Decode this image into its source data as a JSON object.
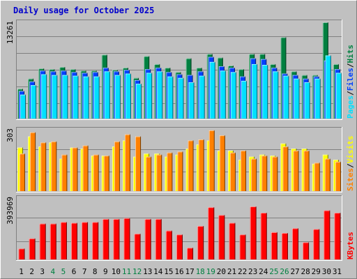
{
  "title": "Daily usage for October 2025",
  "colors": {
    "hits": "#008040",
    "files": "#0040ff",
    "pages": "#00e0ff",
    "visits": "#ffff00",
    "sites": "#ff8000",
    "kbytes": "#ff0000",
    "weekend_day_label": "#008040",
    "weekday_label": "#000000",
    "title": "#0000cc",
    "background": "#c0c0c0"
  },
  "chart_data": [
    {
      "type": "bar",
      "panel": "top",
      "ymax_label": "13261",
      "ylim": [
        0,
        13261
      ],
      "side_labels": [
        "Pages",
        "/",
        "Files",
        "/",
        "Hits"
      ],
      "categories": [
        "1",
        "2",
        "3",
        "4",
        "5",
        "6",
        "7",
        "8",
        "9",
        "10",
        "11",
        "12",
        "13",
        "14",
        "15",
        "16",
        "17",
        "18",
        "19",
        "20",
        "21",
        "22",
        "23",
        "24",
        "25",
        "26",
        "27",
        "28",
        "29",
        "30",
        "31"
      ],
      "weekend_days": [
        "4",
        "5",
        "11",
        "12",
        "18",
        "19",
        "25",
        "26"
      ],
      "series": [
        {
          "name": "Hits",
          "values": [
            4100,
            5500,
            6900,
            6800,
            7100,
            6800,
            6600,
            6600,
            8800,
            6700,
            7000,
            5600,
            8600,
            7500,
            7000,
            6400,
            8300,
            7000,
            8900,
            8400,
            7300,
            6800,
            8900,
            8900,
            7500,
            11200,
            6500,
            6000,
            6000,
            13261,
            7500
          ]
        },
        {
          "name": "Files",
          "values": [
            3800,
            5100,
            6600,
            6500,
            6600,
            6400,
            6300,
            6400,
            7000,
            6500,
            6700,
            5300,
            6800,
            7000,
            6400,
            6100,
            6000,
            6500,
            8500,
            7200,
            7000,
            5800,
            8300,
            8200,
            7000,
            6200,
            6000,
            5500,
            5800,
            8000,
            6800
          ]
        },
        {
          "name": "Pages",
          "values": [
            3300,
            4600,
            6100,
            6000,
            6000,
            5900,
            5800,
            5800,
            6500,
            6000,
            6200,
            4800,
            6300,
            6500,
            5800,
            5600,
            5000,
            5900,
            7800,
            6600,
            6400,
            5200,
            7500,
            7400,
            6500,
            5900,
            5500,
            5000,
            5500,
            8700,
            6300
          ]
        }
      ]
    },
    {
      "type": "bar",
      "panel": "middle",
      "ymax_label": "303",
      "ylim": [
        0,
        303
      ],
      "side_labels": [
        "Sites",
        "/",
        "Visits"
      ],
      "categories": [
        "1",
        "2",
        "3",
        "4",
        "5",
        "6",
        "7",
        "8",
        "9",
        "10",
        "11",
        "12",
        "13",
        "14",
        "15",
        "16",
        "17",
        "18",
        "19",
        "20",
        "21",
        "22",
        "23",
        "24",
        "25",
        "26",
        "27",
        "28",
        "29",
        "30",
        "31"
      ],
      "series": [
        {
          "name": "Visits",
          "values": [
            215,
            270,
            220,
            240,
            160,
            215,
            210,
            175,
            175,
            220,
            250,
            170,
            185,
            185,
            170,
            180,
            210,
            230,
            250,
            200,
            200,
            155,
            170,
            180,
            175,
            235,
            210,
            210,
            135,
            180,
            155
          ]
        },
        {
          "name": "Sites",
          "values": [
            185,
            290,
            240,
            245,
            180,
            215,
            225,
            180,
            175,
            245,
            280,
            270,
            170,
            180,
            190,
            195,
            250,
            255,
            300,
            275,
            190,
            200,
            160,
            175,
            170,
            220,
            200,
            200,
            140,
            160,
            145
          ]
        }
      ]
    },
    {
      "type": "bar",
      "panel": "bottom",
      "ymax_label": "393969",
      "ylim": [
        0,
        393969
      ],
      "side_labels": [
        "KBytes"
      ],
      "categories": [
        "1",
        "2",
        "3",
        "4",
        "5",
        "6",
        "7",
        "8",
        "9",
        "10",
        "11",
        "12",
        "13",
        "14",
        "15",
        "16",
        "17",
        "18",
        "19",
        "20",
        "21",
        "22",
        "23",
        "24",
        "25",
        "26",
        "27",
        "28",
        "29",
        "30",
        "31"
      ],
      "series": [
        {
          "name": "KBytes",
          "values": [
            70000,
            135000,
            230000,
            230000,
            240000,
            235000,
            240000,
            240000,
            260000,
            260000,
            265000,
            165000,
            260000,
            260000,
            185000,
            160000,
            75000,
            215000,
            335000,
            285000,
            235000,
            160000,
            340000,
            300000,
            175000,
            170000,
            200000,
            110000,
            195000,
            315000,
            300000
          ]
        }
      ]
    }
  ]
}
